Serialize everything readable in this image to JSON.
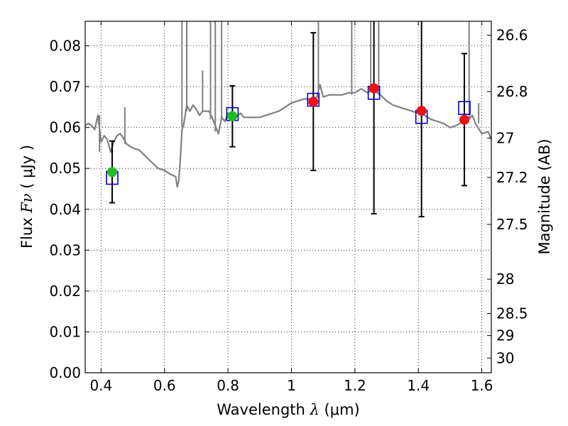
{
  "chart_data": {
    "type": "scatter",
    "xlabel": {
      "main": "Wavelength ",
      "symbol": "λ",
      "unit": "(μm)"
    },
    "ylabel": {
      "main": "Flux ",
      "symbol": "Fν",
      "unit": "( μJy )"
    },
    "y2label": "Magnitude (AB)",
    "xlim": [
      0.35,
      1.63
    ],
    "ylim": [
      0.0,
      0.086
    ],
    "grid": true,
    "xticks": [
      0.4,
      0.6,
      0.8,
      1.0,
      1.2,
      1.4,
      1.6
    ],
    "xtick_labels": [
      "0.4",
      "0.6",
      "0.8",
      "1",
      "1.2",
      "1.4",
      "1.6"
    ],
    "yticks": [
      0.0,
      0.01,
      0.02,
      0.03,
      0.04,
      0.05,
      0.06,
      0.07,
      0.08
    ],
    "ytick_labels": [
      "0.00",
      "0.01",
      "0.02",
      "0.03",
      "0.04",
      "0.05",
      "0.06",
      "0.07",
      "0.08"
    ],
    "y2ticks": [
      {
        "label": "26.6",
        "flux": 0.0826
      },
      {
        "label": "26.8",
        "flux": 0.0688
      },
      {
        "label": "27",
        "flux": 0.0574
      },
      {
        "label": "27.2",
        "flux": 0.0478
      },
      {
        "label": "27.5",
        "flux": 0.0363
      },
      {
        "label": "28",
        "flux": 0.0229
      },
      {
        "label": "28.5",
        "flux": 0.0145
      },
      {
        "label": "29",
        "flux": 0.0091
      },
      {
        "label": "30",
        "flux": 0.0036
      }
    ],
    "series": [
      {
        "kind": "model-spectrum",
        "color": "#808080",
        "x": [
          0.35,
          0.36,
          0.37,
          0.38,
          0.39,
          0.4,
          0.41,
          0.42,
          0.43,
          0.44,
          0.45,
          0.46,
          0.47,
          0.48,
          0.49,
          0.5,
          0.52,
          0.54,
          0.56,
          0.58,
          0.6,
          0.62,
          0.635,
          0.64,
          0.645,
          0.65,
          0.655,
          0.66,
          0.665,
          0.67,
          0.68,
          0.69,
          0.7,
          0.71,
          0.72,
          0.73,
          0.74,
          0.75,
          0.76,
          0.77,
          0.78,
          0.79,
          0.8,
          0.81,
          0.82,
          0.83,
          0.84,
          0.85,
          0.86,
          0.87,
          0.88,
          0.89,
          0.9,
          0.92,
          0.94,
          0.96,
          0.98,
          1.0,
          1.02,
          1.04,
          1.06,
          1.08,
          1.09,
          1.1,
          1.12,
          1.14,
          1.16,
          1.18,
          1.2,
          1.22,
          1.24,
          1.25,
          1.26,
          1.27,
          1.28,
          1.3,
          1.32,
          1.34,
          1.36,
          1.38,
          1.4,
          1.42,
          1.44,
          1.46,
          1.48,
          1.5,
          1.52,
          1.54,
          1.55,
          1.56,
          1.57,
          1.58,
          1.6,
          1.62,
          1.63
        ],
        "y": [
          0.0605,
          0.061,
          0.0605,
          0.0595,
          0.063,
          0.0565,
          0.058,
          0.057,
          0.054,
          0.0565,
          0.058,
          0.0585,
          0.0575,
          0.056,
          0.0555,
          0.055,
          0.0545,
          0.053,
          0.0515,
          0.05,
          0.0495,
          0.0485,
          0.048,
          0.0455,
          0.047,
          0.0525,
          0.0595,
          0.0605,
          0.063,
          0.0655,
          0.064,
          0.0655,
          0.0645,
          0.063,
          0.064,
          0.064,
          0.064,
          0.0625,
          0.0605,
          0.0585,
          0.0625,
          0.0615,
          0.0635,
          0.0625,
          0.063,
          0.063,
          0.0635,
          0.0625,
          0.0625,
          0.0625,
          0.0625,
          0.0625,
          0.0625,
          0.063,
          0.0635,
          0.064,
          0.065,
          0.066,
          0.0665,
          0.067,
          0.067,
          0.0675,
          0.0705,
          0.0675,
          0.068,
          0.068,
          0.068,
          0.0685,
          0.0685,
          0.0695,
          0.0685,
          0.069,
          0.069,
          0.0685,
          0.068,
          0.0665,
          0.0655,
          0.065,
          0.0645,
          0.064,
          0.0635,
          0.063,
          0.062,
          0.0615,
          0.061,
          0.06,
          0.0605,
          0.0615,
          0.0625,
          0.062,
          0.063,
          0.061,
          0.0585,
          0.059,
          0.057
        ]
      },
      {
        "kind": "model-photometry",
        "marker": "open-square",
        "color": "#0000cc",
        "x": [
          0.435,
          0.814,
          1.069,
          1.26,
          1.41,
          1.545
        ],
        "y": [
          0.0477,
          0.0633,
          0.0668,
          0.0685,
          0.0626,
          0.0648
        ]
      },
      {
        "kind": "observed-photometry",
        "marker": "filled-circle",
        "x": [
          0.435,
          0.814,
          1.069,
          1.26,
          1.41,
          1.545
        ],
        "y": [
          0.0491,
          0.0628,
          0.0663,
          0.0696,
          0.0641,
          0.0619
        ],
        "yerr_low": [
          0.0416,
          0.0553,
          0.0495,
          0.0389,
          0.0382,
          0.0458
        ],
        "yerr_high": [
          0.0567,
          0.0702,
          0.0832,
          0.086,
          0.086,
          0.0781
        ],
        "colors": [
          "#22bb22",
          "#22bb22",
          "#ee1111",
          "#ee1111",
          "#ee1111",
          "#ee1111"
        ]
      }
    ]
  }
}
